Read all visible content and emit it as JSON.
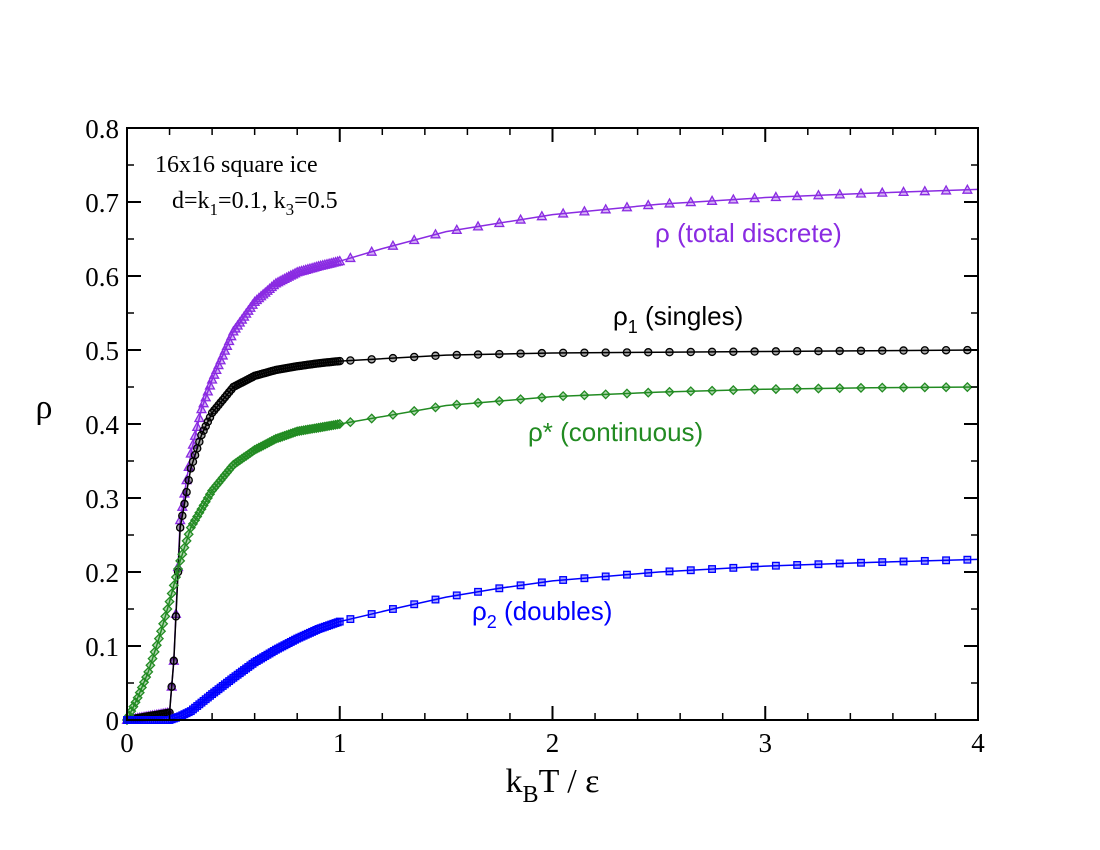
{
  "chart_data": {
    "type": "scatter",
    "title": "",
    "xlabel": {
      "main": "k",
      "sub": "B",
      "rest": "T / ε"
    },
    "ylabel": "ρ",
    "xlim": [
      0,
      4
    ],
    "ylim": [
      0,
      0.8
    ],
    "x_ticks": [
      0,
      1,
      2,
      3,
      4
    ],
    "x_tick_labels": [
      "0",
      "1",
      "2",
      "3",
      "4"
    ],
    "y_ticks": [
      0,
      0.1,
      0.2,
      0.3,
      0.4,
      0.5,
      0.6,
      0.7,
      0.8
    ],
    "y_tick_labels": [
      "0",
      "0.1",
      "0.2",
      "0.3",
      "0.4",
      "0.5",
      "0.6",
      "0.7",
      "0.8"
    ],
    "grid": false,
    "info": {
      "line1": "16x16 square ice",
      "line2_a": "d=k",
      "line2_sub1": "1",
      "line2_b": "=0.1, k",
      "line2_sub2": "3",
      "line2_c": "=0.5"
    },
    "series": [
      {
        "name": "total",
        "label_main": "ρ (total discrete)",
        "label_sub": "",
        "label_rest": "",
        "color": "#8a2be2",
        "marker": "triangle",
        "x": [
          0,
          0.2,
          0.22,
          0.25,
          0.3,
          0.35,
          0.4,
          0.5,
          0.6,
          0.7,
          0.8,
          0.9,
          1.0,
          1.2,
          1.5,
          2.0,
          2.5,
          3.0,
          3.5,
          4.0
        ],
        "values": [
          0,
          0.01,
          0.08,
          0.27,
          0.36,
          0.42,
          0.46,
          0.525,
          0.565,
          0.59,
          0.605,
          0.613,
          0.62,
          0.637,
          0.66,
          0.683,
          0.697,
          0.706,
          0.712,
          0.717
        ]
      },
      {
        "name": "singles",
        "label_main": "ρ",
        "label_sub": "1",
        "label_rest": " (singles)",
        "color": "#000000",
        "marker": "circle",
        "x": [
          0,
          0.2,
          0.22,
          0.25,
          0.3,
          0.35,
          0.4,
          0.5,
          0.6,
          0.7,
          0.8,
          0.9,
          1.0,
          1.5,
          2.0,
          2.5,
          3.0,
          3.5,
          4.0
        ],
        "values": [
          0,
          0.01,
          0.08,
          0.26,
          0.34,
          0.385,
          0.415,
          0.45,
          0.465,
          0.473,
          0.478,
          0.482,
          0.485,
          0.493,
          0.496,
          0.497,
          0.498,
          0.499,
          0.5
        ]
      },
      {
        "name": "continuous",
        "label_main": "ρ* (continuous)",
        "label_sub": "",
        "label_rest": "",
        "color": "#228b22",
        "marker": "diamond",
        "x": [
          0,
          0.05,
          0.1,
          0.15,
          0.2,
          0.25,
          0.3,
          0.4,
          0.5,
          0.6,
          0.7,
          0.8,
          0.9,
          1.0,
          1.5,
          2.0,
          2.5,
          3.0,
          3.5,
          4.0
        ],
        "values": [
          0,
          0.03,
          0.065,
          0.11,
          0.16,
          0.215,
          0.26,
          0.31,
          0.345,
          0.365,
          0.38,
          0.39,
          0.395,
          0.4,
          0.425,
          0.437,
          0.443,
          0.447,
          0.449,
          0.45
        ]
      },
      {
        "name": "doubles",
        "label_main": "ρ",
        "label_sub": "2",
        "label_rest": " (doubles)",
        "color": "#0000ff",
        "marker": "square",
        "x": [
          0,
          0.2,
          0.25,
          0.3,
          0.4,
          0.5,
          0.6,
          0.7,
          0.8,
          0.9,
          1.0,
          1.25,
          1.5,
          1.75,
          2.0,
          2.5,
          3.0,
          3.5,
          4.0
        ],
        "values": [
          0,
          0,
          0.005,
          0.012,
          0.035,
          0.057,
          0.078,
          0.095,
          0.11,
          0.123,
          0.133,
          0.15,
          0.166,
          0.178,
          0.188,
          0.2,
          0.208,
          0.213,
          0.217
        ]
      }
    ]
  }
}
